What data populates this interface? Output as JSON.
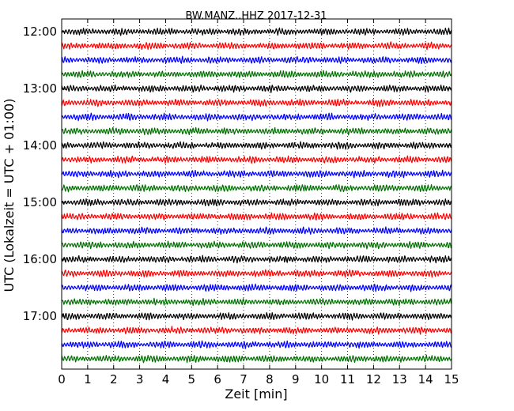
{
  "chart_data": {
    "type": "line",
    "title": "BW.MANZ..HHZ 2017-12-31",
    "xlabel": "Zeit  [min]",
    "ylabel": "UTC (Lokalzeit = UTC + 01:00)",
    "xlim": [
      0,
      15
    ],
    "x_ticks": [
      0,
      1,
      2,
      3,
      4,
      5,
      6,
      7,
      8,
      9,
      10,
      11,
      12,
      13,
      14,
      15
    ],
    "grid": "vertical dotted",
    "y_tick_labels": [
      "12:00",
      "13:00",
      "14:00",
      "15:00",
      "16:00",
      "17:00"
    ],
    "trace_colors": [
      "#000000",
      "#ff0000",
      "#0000ff",
      "#007000"
    ],
    "traces_per_hour": 4,
    "trace_minutes": 15,
    "series": [
      {
        "start": "12:00",
        "color": "#000000"
      },
      {
        "start": "12:15",
        "color": "#ff0000"
      },
      {
        "start": "12:30",
        "color": "#0000ff"
      },
      {
        "start": "12:45",
        "color": "#007000"
      },
      {
        "start": "13:00",
        "color": "#000000"
      },
      {
        "start": "13:15",
        "color": "#ff0000"
      },
      {
        "start": "13:30",
        "color": "#0000ff"
      },
      {
        "start": "13:45",
        "color": "#007000"
      },
      {
        "start": "14:00",
        "color": "#000000"
      },
      {
        "start": "14:15",
        "color": "#ff0000"
      },
      {
        "start": "14:30",
        "color": "#0000ff"
      },
      {
        "start": "14:45",
        "color": "#007000"
      },
      {
        "start": "15:00",
        "color": "#000000"
      },
      {
        "start": "15:15",
        "color": "#ff0000"
      },
      {
        "start": "15:30",
        "color": "#0000ff"
      },
      {
        "start": "15:45",
        "color": "#007000"
      },
      {
        "start": "16:00",
        "color": "#000000"
      },
      {
        "start": "16:15",
        "color": "#ff0000"
      },
      {
        "start": "16:30",
        "color": "#0000ff"
      },
      {
        "start": "16:45",
        "color": "#007000"
      },
      {
        "start": "17:00",
        "color": "#000000"
      },
      {
        "start": "17:15",
        "color": "#ff0000"
      },
      {
        "start": "17:30",
        "color": "#0000ff"
      },
      {
        "start": "17:45",
        "color": "#007000"
      }
    ]
  }
}
